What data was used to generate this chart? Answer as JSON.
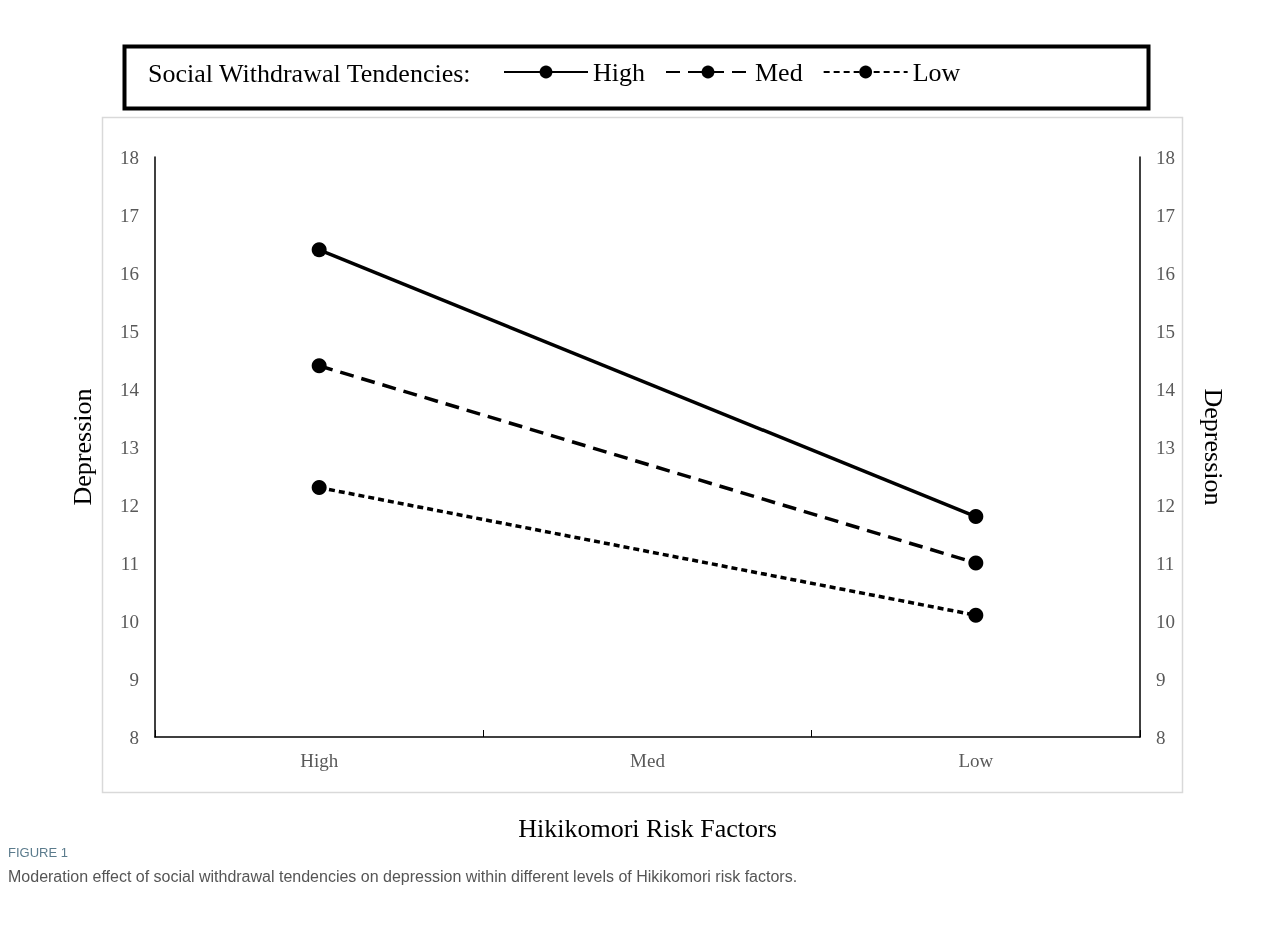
{
  "chart_data": {
    "type": "line",
    "xlabel": "Hikikomori Risk Factors",
    "ylabel": "Depression",
    "y2label": "Depression",
    "legend_title": "Social Withdrawal Tendencies:",
    "legend": "top",
    "grid": false,
    "marker": "circle",
    "categories": [
      "High",
      "Med",
      "Low"
    ],
    "ylim": [
      8,
      18
    ],
    "yticks": [
      8,
      9,
      10,
      11,
      12,
      13,
      14,
      15,
      16,
      17,
      18
    ],
    "y2lim": [
      8,
      18
    ],
    "y2ticks": [
      8,
      9,
      10,
      11,
      12,
      13,
      14,
      15,
      16,
      17,
      18
    ],
    "series": [
      {
        "name": "High",
        "color": "#000000",
        "line_style": "solid",
        "values": [
          16.4,
          null,
          11.8
        ]
      },
      {
        "name": "Med",
        "color": "#000000",
        "line_style": "dashed",
        "values": [
          14.4,
          null,
          11.0
        ]
      },
      {
        "name": "Low",
        "color": "#000000",
        "line_style": "dotted",
        "values": [
          12.3,
          null,
          10.1
        ]
      }
    ],
    "annotations": [
      "FIGURE 1",
      "Moderation effect of social withdrawal tendencies on depression within different levels of Hikikomori risk factors."
    ]
  }
}
